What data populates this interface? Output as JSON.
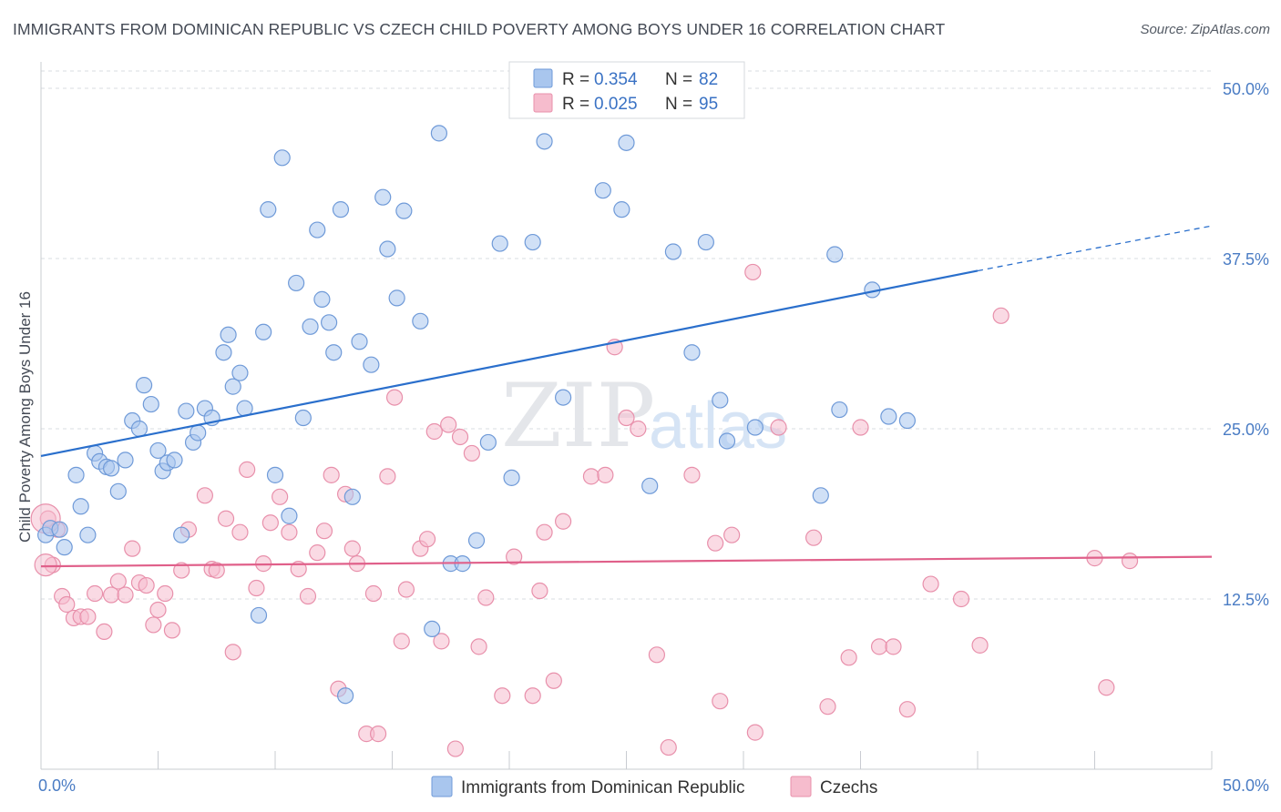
{
  "title": "IMMIGRANTS FROM DOMINICAN REPUBLIC VS CZECH CHILD POVERTY AMONG BOYS UNDER 16 CORRELATION CHART",
  "source": "Source: ZipAtlas.com",
  "watermark": {
    "zip": "ZIP",
    "atlas": "atlas"
  },
  "colors": {
    "blue_fill": "#a9c6ee",
    "blue_stroke": "#6f9ad8",
    "blue_line": "#2a6fcc",
    "pink_fill": "#f6bccd",
    "pink_stroke": "#e890ab",
    "pink_line": "#e0608a",
    "grid": "#d9dce1",
    "axis_label": "#4a7cc4"
  },
  "legend": {
    "rows": [
      {
        "r_label": "R = ",
        "r_value": "0.354",
        "n_label": "N = ",
        "n_value": "82"
      },
      {
        "r_label": "R = ",
        "r_value": "0.025",
        "n_label": "N = ",
        "n_value": "95"
      }
    ]
  },
  "chart_data": {
    "type": "scatter",
    "title": "IMMIGRANTS FROM DOMINICAN REPUBLIC VS CZECH CHILD POVERTY AMONG BOYS UNDER 16 CORRELATION CHART",
    "xlabel": "",
    "ylabel": "Child Poverty Among Boys Under 16",
    "xlim": [
      0,
      50
    ],
    "ylim": [
      0,
      50
    ],
    "x_tick_labels": [
      "0.0%",
      "50.0%"
    ],
    "y_ticks": [
      12.5,
      25.0,
      37.5,
      50.0
    ],
    "y_tick_labels": [
      "12.5%",
      "25.0%",
      "37.5%",
      "50.0%"
    ],
    "grid": true,
    "legend_position": "top-center",
    "series": [
      {
        "name": "Immigrants from Dominican Republic",
        "r": 0.354,
        "n": 82,
        "trend": {
          "x0": 0,
          "y0": 23.0,
          "x1": 40,
          "y1": 36.6,
          "dashed_to_x": 50,
          "dashed_to_y": 39.9
        },
        "points": [
          [
            0.2,
            17.2
          ],
          [
            0.4,
            17.7
          ],
          [
            0.8,
            17.6
          ],
          [
            1.0,
            16.3
          ],
          [
            1.5,
            21.6
          ],
          [
            1.7,
            19.3
          ],
          [
            2.0,
            17.2
          ],
          [
            2.3,
            23.2
          ],
          [
            2.5,
            22.6
          ],
          [
            2.8,
            22.2
          ],
          [
            3.0,
            22.1
          ],
          [
            3.3,
            20.4
          ],
          [
            3.6,
            22.7
          ],
          [
            3.9,
            25.6
          ],
          [
            4.2,
            25.0
          ],
          [
            4.4,
            28.2
          ],
          [
            4.7,
            26.8
          ],
          [
            5.0,
            23.4
          ],
          [
            5.2,
            21.9
          ],
          [
            5.4,
            22.5
          ],
          [
            5.7,
            22.7
          ],
          [
            6.0,
            17.2
          ],
          [
            6.2,
            26.3
          ],
          [
            6.5,
            24.0
          ],
          [
            6.7,
            24.7
          ],
          [
            7.0,
            26.5
          ],
          [
            7.3,
            25.8
          ],
          [
            7.8,
            30.6
          ],
          [
            8.0,
            31.9
          ],
          [
            8.2,
            28.1
          ],
          [
            8.5,
            29.1
          ],
          [
            8.7,
            26.5
          ],
          [
            9.3,
            11.3
          ],
          [
            9.5,
            32.1
          ],
          [
            9.7,
            41.1
          ],
          [
            10.0,
            21.6
          ],
          [
            10.3,
            44.9
          ],
          [
            10.6,
            18.6
          ],
          [
            10.9,
            35.7
          ],
          [
            11.2,
            25.8
          ],
          [
            11.5,
            32.5
          ],
          [
            11.8,
            39.6
          ],
          [
            12.0,
            34.5
          ],
          [
            12.3,
            32.8
          ],
          [
            12.5,
            30.6
          ],
          [
            12.8,
            41.1
          ],
          [
            13.0,
            5.4
          ],
          [
            13.3,
            20.0
          ],
          [
            13.6,
            31.4
          ],
          [
            14.1,
            29.7
          ],
          [
            14.6,
            42.0
          ],
          [
            14.8,
            38.2
          ],
          [
            15.2,
            34.6
          ],
          [
            15.5,
            41.0
          ],
          [
            16.2,
            32.9
          ],
          [
            16.7,
            10.3
          ],
          [
            17.0,
            46.7
          ],
          [
            17.5,
            15.1
          ],
          [
            18.0,
            15.1
          ],
          [
            18.6,
            16.8
          ],
          [
            19.1,
            24.0
          ],
          [
            19.6,
            38.6
          ],
          [
            20.1,
            21.4
          ],
          [
            21.0,
            38.7
          ],
          [
            21.5,
            46.1
          ],
          [
            22.3,
            27.3
          ],
          [
            24.0,
            42.5
          ],
          [
            24.8,
            41.1
          ],
          [
            25.0,
            46.0
          ],
          [
            26.0,
            20.8
          ],
          [
            27.0,
            38.0
          ],
          [
            27.8,
            30.6
          ],
          [
            28.4,
            38.7
          ],
          [
            29.0,
            27.1
          ],
          [
            29.3,
            24.1
          ],
          [
            30.5,
            25.1
          ],
          [
            33.3,
            20.1
          ],
          [
            33.9,
            37.8
          ],
          [
            34.1,
            26.4
          ],
          [
            35.5,
            35.2
          ],
          [
            36.2,
            25.9
          ],
          [
            37.0,
            25.6
          ]
        ]
      },
      {
        "name": "Czechs",
        "r": 0.025,
        "n": 95,
        "trend": {
          "x0": 0,
          "y0": 14.9,
          "x1": 50,
          "y1": 15.6
        },
        "points": [
          [
            0.3,
            18.4
          ],
          [
            0.5,
            15.0
          ],
          [
            0.7,
            17.6
          ],
          [
            0.9,
            12.7
          ],
          [
            1.1,
            12.1
          ],
          [
            1.4,
            11.1
          ],
          [
            1.7,
            11.2
          ],
          [
            2.0,
            11.2
          ],
          [
            2.3,
            12.9
          ],
          [
            2.7,
            10.1
          ],
          [
            3.0,
            12.8
          ],
          [
            3.3,
            13.8
          ],
          [
            3.6,
            12.8
          ],
          [
            3.9,
            16.2
          ],
          [
            4.2,
            13.7
          ],
          [
            4.5,
            13.5
          ],
          [
            4.8,
            10.6
          ],
          [
            5.0,
            11.7
          ],
          [
            5.3,
            12.9
          ],
          [
            5.6,
            10.2
          ],
          [
            6.0,
            14.6
          ],
          [
            6.3,
            17.6
          ],
          [
            7.0,
            20.1
          ],
          [
            7.3,
            14.7
          ],
          [
            7.5,
            14.6
          ],
          [
            7.9,
            18.4
          ],
          [
            8.2,
            8.6
          ],
          [
            8.5,
            17.4
          ],
          [
            8.8,
            22.0
          ],
          [
            9.2,
            13.3
          ],
          [
            9.5,
            15.1
          ],
          [
            9.8,
            18.1
          ],
          [
            10.2,
            20.0
          ],
          [
            10.6,
            17.4
          ],
          [
            11.0,
            14.7
          ],
          [
            11.4,
            12.7
          ],
          [
            11.8,
            15.9
          ],
          [
            12.1,
            17.5
          ],
          [
            12.4,
            21.6
          ],
          [
            12.7,
            5.9
          ],
          [
            13.0,
            20.2
          ],
          [
            13.3,
            16.2
          ],
          [
            13.5,
            15.1
          ],
          [
            13.9,
            2.6
          ],
          [
            14.2,
            12.9
          ],
          [
            14.4,
            2.6
          ],
          [
            14.8,
            21.5
          ],
          [
            15.1,
            27.3
          ],
          [
            15.4,
            9.4
          ],
          [
            15.6,
            13.2
          ],
          [
            16.2,
            16.2
          ],
          [
            16.5,
            16.9
          ],
          [
            16.8,
            24.8
          ],
          [
            17.1,
            9.4
          ],
          [
            17.4,
            25.3
          ],
          [
            17.7,
            1.5
          ],
          [
            17.9,
            24.4
          ],
          [
            18.4,
            23.2
          ],
          [
            18.7,
            9.0
          ],
          [
            19.0,
            12.6
          ],
          [
            19.7,
            5.4
          ],
          [
            20.2,
            15.6
          ],
          [
            21.0,
            5.4
          ],
          [
            21.3,
            13.1
          ],
          [
            21.5,
            17.4
          ],
          [
            21.9,
            6.5
          ],
          [
            22.3,
            18.2
          ],
          [
            23.5,
            21.5
          ],
          [
            24.1,
            21.6
          ],
          [
            24.5,
            31.0
          ],
          [
            25.0,
            25.8
          ],
          [
            25.5,
            25.0
          ],
          [
            26.3,
            8.4
          ],
          [
            26.8,
            1.6
          ],
          [
            27.8,
            21.6
          ],
          [
            28.8,
            16.6
          ],
          [
            29.0,
            5.0
          ],
          [
            29.5,
            17.2
          ],
          [
            30.4,
            36.5
          ],
          [
            30.5,
            2.7
          ],
          [
            31.5,
            25.1
          ],
          [
            33.0,
            17.0
          ],
          [
            33.6,
            4.6
          ],
          [
            34.5,
            8.2
          ],
          [
            35.0,
            25.1
          ],
          [
            35.8,
            9.0
          ],
          [
            36.4,
            9.0
          ],
          [
            37.0,
            4.4
          ],
          [
            38.0,
            13.6
          ],
          [
            39.3,
            12.5
          ],
          [
            40.1,
            9.1
          ],
          [
            41.0,
            33.3
          ],
          [
            45.5,
            6.0
          ],
          [
            45.0,
            15.5
          ],
          [
            46.5,
            15.3
          ]
        ]
      }
    ]
  },
  "bottom_legend": [
    {
      "label": "Immigrants from Dominican Republic"
    },
    {
      "label": "Czechs"
    }
  ]
}
